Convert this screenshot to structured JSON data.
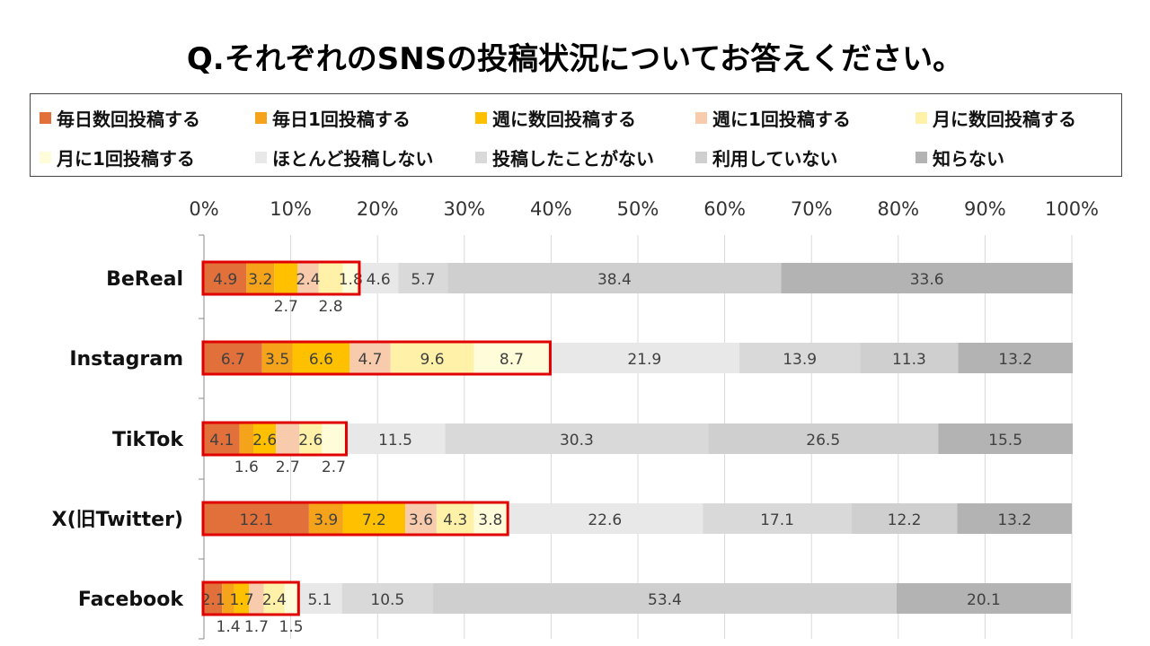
{
  "title": "Q.それぞれのSNSの投稿状況についてお答えください。",
  "chart_data": {
    "type": "bar",
    "orientation": "horizontal",
    "stacked": true,
    "categories": [
      "BeReal",
      "Instagram",
      "TikTok",
      "X(旧Twitter)",
      "Facebook"
    ],
    "xlim": [
      0,
      100
    ],
    "xticks": [
      "0%",
      "10%",
      "20%",
      "30%",
      "40%",
      "50%",
      "60%",
      "70%",
      "80%",
      "90%",
      "100%"
    ],
    "legend_position": "top",
    "series": [
      {
        "name": "毎日数回投稿する",
        "color": "#E2703A",
        "values": [
          4.9,
          6.7,
          4.1,
          12.1,
          2.1
        ]
      },
      {
        "name": "毎日1回投稿する",
        "color": "#F5A31A",
        "values": [
          3.2,
          3.5,
          1.6,
          3.9,
          1.4
        ]
      },
      {
        "name": "週に数回投稿する",
        "color": "#FFC000",
        "values": [
          2.7,
          6.6,
          2.6,
          7.2,
          1.7
        ]
      },
      {
        "name": "週に1回投稿する",
        "color": "#F8CBAD",
        "values": [
          2.4,
          4.7,
          2.7,
          3.6,
          1.7
        ]
      },
      {
        "name": "月に数回投稿する",
        "color": "#FFF2A8",
        "values": [
          2.8,
          9.6,
          2.6,
          4.3,
          2.4
        ]
      },
      {
        "name": "月に1回投稿する",
        "color": "#FFFCD9",
        "values": [
          1.8,
          8.7,
          2.7,
          3.8,
          1.5
        ]
      },
      {
        "name": "ほとんど投稿しない",
        "color": "#E8E8E8",
        "values": [
          4.6,
          21.9,
          11.5,
          22.6,
          5.1
        ]
      },
      {
        "name": "投稿したことがない",
        "color": "#D9D9D9",
        "values": [
          5.7,
          13.9,
          30.3,
          17.1,
          10.5
        ]
      },
      {
        "name": "利用していない",
        "color": "#CFCFCF",
        "values": [
          38.4,
          11.3,
          26.5,
          12.2,
          53.4
        ]
      },
      {
        "name": "知らない",
        "color": "#B3B3B3",
        "values": [
          33.6,
          13.2,
          15.5,
          13.2,
          20.1
        ]
      }
    ],
    "value_labels": [
      [
        {
          "series": 0,
          "text": "4.9",
          "pos": "inside"
        },
        {
          "series": 1,
          "text": "3.2",
          "pos": "inside"
        },
        {
          "series": 2,
          "text": "2.7",
          "pos": "below"
        },
        {
          "series": 3,
          "text": "2.4",
          "pos": "inside"
        },
        {
          "series": 4,
          "text": "2.8",
          "pos": "below"
        },
        {
          "series": 5,
          "text": "1.8",
          "pos": "inside"
        },
        {
          "series": 6,
          "text": "4.6",
          "pos": "inside"
        },
        {
          "series": 7,
          "text": "5.7",
          "pos": "inside"
        },
        {
          "series": 8,
          "text": "38.4",
          "pos": "inside"
        },
        {
          "series": 9,
          "text": "33.6",
          "pos": "inside"
        }
      ],
      [
        {
          "series": 0,
          "text": "6.7",
          "pos": "inside"
        },
        {
          "series": 1,
          "text": "3.5",
          "pos": "inside"
        },
        {
          "series": 2,
          "text": "6.6",
          "pos": "inside"
        },
        {
          "series": 3,
          "text": "4.7",
          "pos": "inside"
        },
        {
          "series": 4,
          "text": "9.6",
          "pos": "inside"
        },
        {
          "series": 5,
          "text": "8.7",
          "pos": "inside"
        },
        {
          "series": 6,
          "text": "21.9",
          "pos": "inside"
        },
        {
          "series": 7,
          "text": "13.9",
          "pos": "inside"
        },
        {
          "series": 8,
          "text": "11.3",
          "pos": "inside"
        },
        {
          "series": 9,
          "text": "13.2",
          "pos": "inside"
        }
      ],
      [
        {
          "series": 0,
          "text": "4.1",
          "pos": "inside"
        },
        {
          "series": 1,
          "text": "1.6",
          "pos": "below"
        },
        {
          "series": 2,
          "text": "2.6",
          "pos": "inside"
        },
        {
          "series": 3,
          "text": "2.7",
          "pos": "below"
        },
        {
          "series": 4,
          "text": "2.6",
          "pos": "inside"
        },
        {
          "series": 5,
          "text": "2.7",
          "pos": "below"
        },
        {
          "series": 6,
          "text": "11.5",
          "pos": "inside"
        },
        {
          "series": 7,
          "text": "30.3",
          "pos": "inside"
        },
        {
          "series": 8,
          "text": "26.5",
          "pos": "inside"
        },
        {
          "series": 9,
          "text": "15.5",
          "pos": "inside"
        }
      ],
      [
        {
          "series": 0,
          "text": "12.1",
          "pos": "inside"
        },
        {
          "series": 1,
          "text": "3.9",
          "pos": "inside"
        },
        {
          "series": 2,
          "text": "7.2",
          "pos": "inside"
        },
        {
          "series": 3,
          "text": "3.6",
          "pos": "inside"
        },
        {
          "series": 4,
          "text": "4.3",
          "pos": "inside"
        },
        {
          "series": 5,
          "text": "3.8",
          "pos": "inside"
        },
        {
          "series": 6,
          "text": "22.6",
          "pos": "inside"
        },
        {
          "series": 7,
          "text": "17.1",
          "pos": "inside"
        },
        {
          "series": 8,
          "text": "12.2",
          "pos": "inside"
        },
        {
          "series": 9,
          "text": "13.2",
          "pos": "inside"
        }
      ],
      [
        {
          "series": 0,
          "text": "2.1",
          "pos": "inside"
        },
        {
          "series": 1,
          "text": "1.4",
          "pos": "below"
        },
        {
          "series": 2,
          "text": "1.7",
          "pos": "inside"
        },
        {
          "series": 3,
          "text": "1.7",
          "pos": "below"
        },
        {
          "series": 4,
          "text": "2.4",
          "pos": "inside"
        },
        {
          "series": 5,
          "text": "1.5",
          "pos": "below"
        },
        {
          "series": 6,
          "text": "5.1",
          "pos": "inside"
        },
        {
          "series": 7,
          "text": "10.5",
          "pos": "inside"
        },
        {
          "series": 8,
          "text": "53.4",
          "pos": "inside"
        },
        {
          "series": 9,
          "text": "20.1",
          "pos": "inside"
        }
      ]
    ],
    "highlight": {
      "color": "#E00000",
      "description_series_range": [
        0,
        5
      ]
    }
  }
}
